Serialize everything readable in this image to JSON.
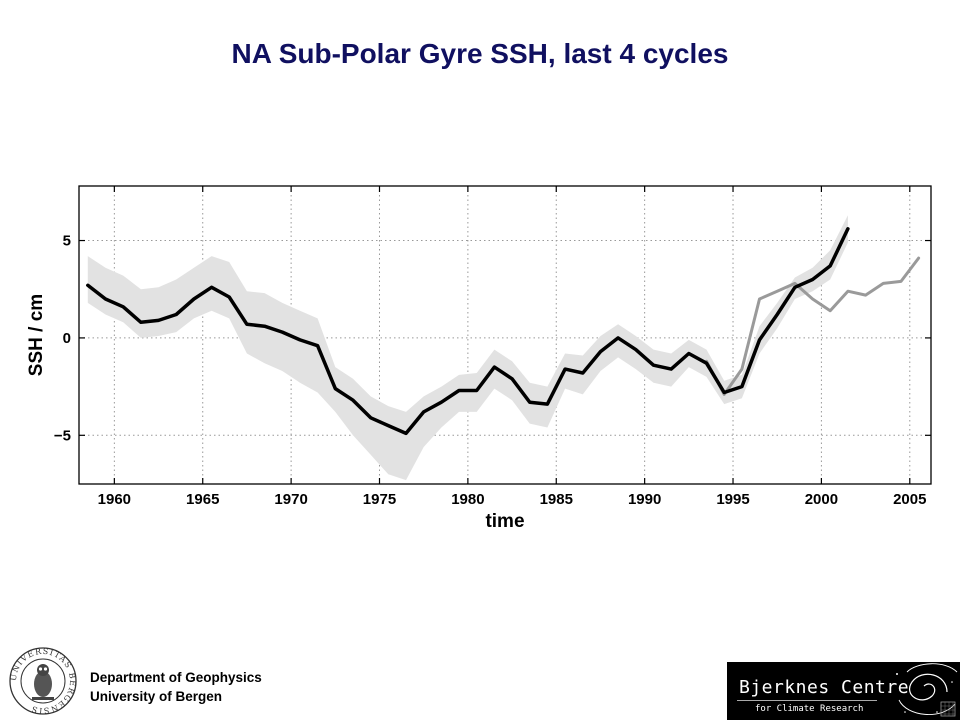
{
  "slide": {
    "title": "NA Sub-Polar Gyre SSH, last 4 cycles"
  },
  "footer": {
    "department": "Department of Geophysics",
    "university": "University of Bergen",
    "seal_text": "UNIVERSITAS BERGENSIS",
    "centre_name": "Bjerknes Centre",
    "centre_subtitle": "for Climate Research"
  },
  "chart_data": {
    "type": "line",
    "title": "",
    "xlabel": "time",
    "ylabel": "SSH / cm",
    "xlim": [
      1958,
      2006.2
    ],
    "ylim": [
      -7.5,
      7.8
    ],
    "x_ticks": [
      1960,
      1965,
      1970,
      1975,
      1980,
      1985,
      1990,
      1995,
      2000,
      2005
    ],
    "y_ticks": [
      -5,
      0,
      5
    ],
    "grid": true,
    "legend": "none",
    "colors": {
      "primary": "#000000",
      "secondary": "#9a9a9a",
      "band": "#e2e2e2"
    },
    "series": [
      {
        "x": [
          1958.5,
          1959.5,
          1960.5,
          1961.5,
          1962.5,
          1963.5,
          1964.5,
          1965.5,
          1966.5,
          1967.5,
          1968.5,
          1969.5,
          1970.5,
          1971.5,
          1972.5,
          1973.5,
          1974.5,
          1975.5,
          1976.5,
          1977.5,
          1978.5,
          1979.5,
          1980.5,
          1981.5,
          1982.5,
          1983.5,
          1984.5,
          1985.5,
          1986.5,
          1987.5,
          1988.5,
          1989.5,
          1990.5,
          1991.5,
          1992.5,
          1993.5,
          1994.5,
          1995.5,
          1996.5,
          1997.5,
          1998.5,
          1999.5,
          2000.5,
          2001.5
        ],
        "values": [
          2.7,
          2.0,
          1.6,
          0.8,
          0.9,
          1.2,
          2.0,
          2.6,
          2.1,
          0.7,
          0.6,
          0.3,
          -0.1,
          -0.4,
          -2.6,
          -3.2,
          -4.1,
          -4.5,
          -4.9,
          -3.8,
          -3.3,
          -2.7,
          -2.7,
          -1.5,
          -2.1,
          -3.3,
          -3.4,
          -1.6,
          -1.8,
          -0.7,
          0.0,
          -0.6,
          -1.4,
          -1.6,
          -0.8,
          -1.3,
          -2.8,
          -2.5,
          -0.1,
          1.2,
          2.6,
          3.0,
          3.7,
          5.6
        ]
      },
      {
        "x": [
          1993.5,
          1994.5,
          1995.5,
          1996.5,
          1997.5,
          1998.5,
          1999.5,
          2000.5,
          2001.5,
          2002.5,
          2003.5,
          2004.5,
          2005.5
        ],
        "values": [
          -1.2,
          -2.9,
          -1.6,
          2.0,
          2.4,
          2.8,
          2.0,
          1.4,
          2.4,
          2.2,
          2.8,
          2.9,
          4.1
        ]
      }
    ],
    "band": {
      "x": [
        1958.5,
        1959.5,
        1960.5,
        1961.5,
        1962.5,
        1963.5,
        1964.5,
        1965.5,
        1966.5,
        1967.5,
        1968.5,
        1969.5,
        1970.5,
        1971.5,
        1972.5,
        1973.5,
        1974.5,
        1975.5,
        1976.5,
        1977.5,
        1978.5,
        1979.5,
        1980.5,
        1981.5,
        1982.5,
        1983.5,
        1984.5,
        1985.5,
        1986.5,
        1987.5,
        1988.5,
        1989.5,
        1990.5,
        1991.5,
        1992.5,
        1993.5,
        1994.5,
        1995.5,
        1996.5,
        1997.5,
        1998.5,
        1999.5,
        2000.5,
        2001.5
      ],
      "upper": [
        4.2,
        3.6,
        3.2,
        2.5,
        2.6,
        3.0,
        3.6,
        4.2,
        3.9,
        2.4,
        2.3,
        1.8,
        1.4,
        1.0,
        -1.5,
        -2.1,
        -3.0,
        -3.5,
        -3.8,
        -3.0,
        -2.5,
        -1.9,
        -1.8,
        -0.6,
        -1.2,
        -2.3,
        -2.5,
        -0.8,
        -0.9,
        0.1,
        0.7,
        0.1,
        -0.6,
        -0.8,
        -0.1,
        -0.6,
        -2.2,
        -1.9,
        0.6,
        1.8,
        3.1,
        3.6,
        4.5,
        6.3
      ],
      "lower": [
        1.8,
        1.2,
        0.8,
        0.0,
        0.1,
        0.3,
        1.0,
        1.4,
        1.0,
        -0.8,
        -1.3,
        -1.7,
        -2.3,
        -2.8,
        -3.8,
        -5.0,
        -6.0,
        -7.0,
        -7.3,
        -5.6,
        -4.6,
        -3.8,
        -3.8,
        -2.6,
        -3.2,
        -4.4,
        -4.6,
        -2.6,
        -2.9,
        -1.7,
        -1.0,
        -1.6,
        -2.3,
        -2.5,
        -1.5,
        -2.0,
        -3.4,
        -3.1,
        -0.8,
        0.5,
        2.0,
        2.4,
        3.0,
        4.9
      ]
    }
  }
}
